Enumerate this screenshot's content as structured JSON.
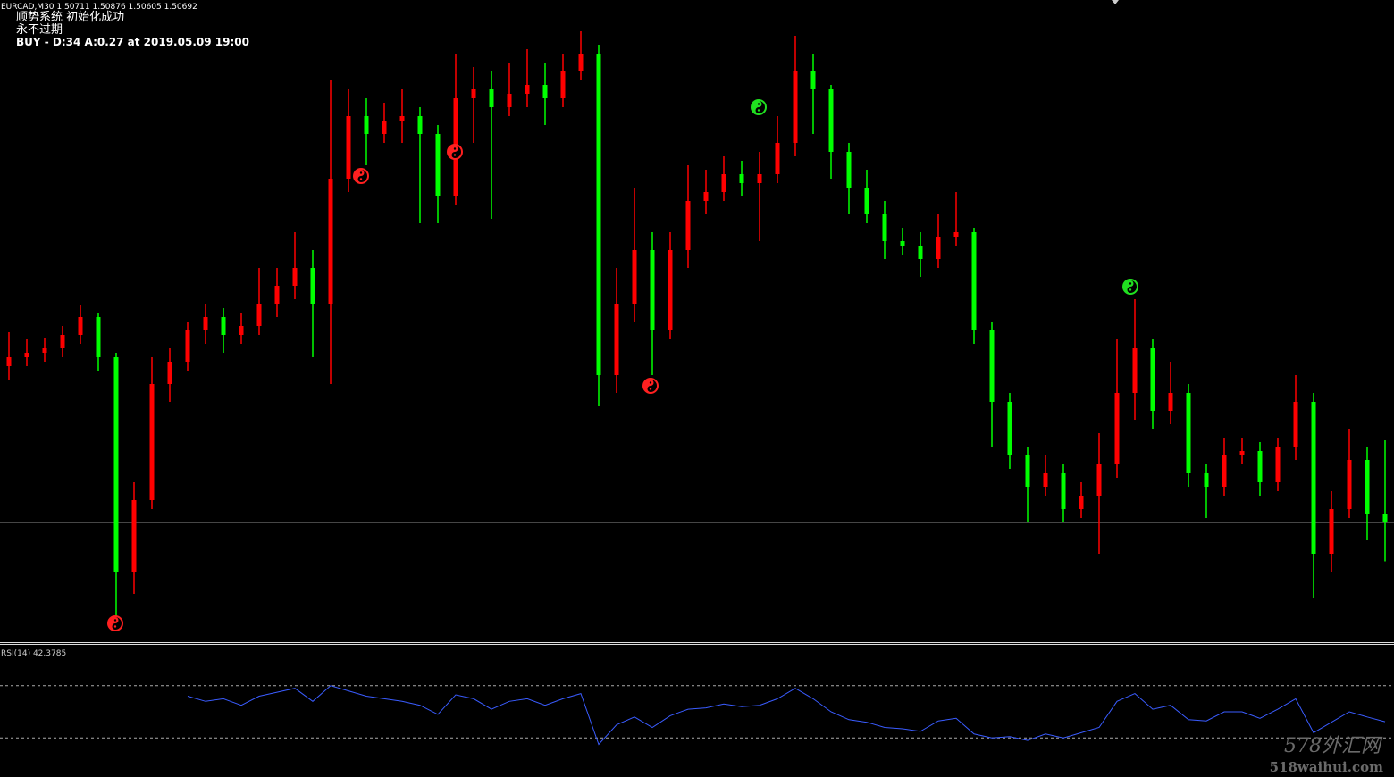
{
  "header": {
    "symbol_line": "EURCAD,M30  1.50711 1.50876 1.50605 1.50692",
    "status": "顺势系统 初始化成功",
    "expiry": "永不过期",
    "signal": "BUY - D:34 A:0.27 at 2019.05.09 19:00"
  },
  "chart_data": [
    {
      "type": "candlestick",
      "up_color": "#ff0000",
      "down_color": "#00ff00",
      "ylim": [
        1.50426,
        1.51862
      ],
      "bid_line": 1.50692,
      "bid_line_color": "#8c8c8c",
      "open": [
        1.51042,
        1.51062,
        1.51072,
        1.51082,
        1.51112,
        1.51152,
        1.51062,
        1.50582,
        1.50742,
        1.51002,
        1.51052,
        1.51122,
        1.51152,
        1.51112,
        1.51132,
        1.51182,
        1.51222,
        1.51262,
        1.51182,
        1.51462,
        1.51602,
        1.51562,
        1.51592,
        1.51602,
        1.51562,
        1.51422,
        1.51642,
        1.51662,
        1.51622,
        1.51652,
        1.51672,
        1.51642,
        1.51702,
        1.51742,
        1.51022,
        1.51182,
        1.51302,
        1.51122,
        1.51302,
        1.51412,
        1.51432,
        1.51472,
        1.51452,
        1.51472,
        1.51542,
        1.51702,
        1.51662,
        1.51522,
        1.51442,
        1.51382,
        1.51322,
        1.51312,
        1.51282,
        1.51332,
        1.51342,
        1.51122,
        1.50962,
        1.50842,
        1.50772,
        1.50802,
        1.50722,
        1.50752,
        1.50822,
        1.50982,
        1.51082,
        1.50942,
        1.50982,
        1.50802,
        1.50772,
        1.50842,
        1.50852,
        1.50782,
        1.50862,
        1.50962,
        1.50622,
        1.50722,
        1.50832,
        1.50711
      ],
      "high": [
        1.51118,
        1.51102,
        1.51106,
        1.51132,
        1.51178,
        1.51162,
        1.51072,
        1.50782,
        1.51062,
        1.51082,
        1.51142,
        1.51182,
        1.51172,
        1.51162,
        1.51262,
        1.51262,
        1.51342,
        1.51302,
        1.51682,
        1.51662,
        1.51642,
        1.51632,
        1.51662,
        1.51622,
        1.51582,
        1.51742,
        1.51712,
        1.51702,
        1.51722,
        1.51752,
        1.51722,
        1.51742,
        1.51792,
        1.51762,
        1.51262,
        1.51442,
        1.51342,
        1.51342,
        1.51492,
        1.51482,
        1.51512,
        1.51502,
        1.51522,
        1.51602,
        1.51782,
        1.51742,
        1.51672,
        1.51542,
        1.51482,
        1.51412,
        1.51352,
        1.51342,
        1.51382,
        1.51432,
        1.51352,
        1.51142,
        1.50982,
        1.50862,
        1.50842,
        1.50822,
        1.50782,
        1.50892,
        1.51102,
        1.51192,
        1.51102,
        1.51052,
        1.51002,
        1.50822,
        1.50882,
        1.50882,
        1.50872,
        1.50882,
        1.51022,
        1.50982,
        1.50762,
        1.50902,
        1.50862,
        1.50876
      ],
      "low": [
        1.51012,
        1.51042,
        1.51052,
        1.51062,
        1.51092,
        1.51032,
        1.50482,
        1.50532,
        1.50722,
        1.50962,
        1.51032,
        1.51092,
        1.51072,
        1.51092,
        1.51112,
        1.51152,
        1.51192,
        1.51062,
        1.51002,
        1.51432,
        1.51492,
        1.51542,
        1.51542,
        1.51362,
        1.51362,
        1.51402,
        1.51542,
        1.51372,
        1.51602,
        1.51622,
        1.51582,
        1.51622,
        1.51682,
        1.50952,
        1.50982,
        1.51142,
        1.51022,
        1.51102,
        1.51262,
        1.51382,
        1.51412,
        1.51422,
        1.51322,
        1.51452,
        1.51512,
        1.51562,
        1.51462,
        1.51382,
        1.51362,
        1.51282,
        1.51292,
        1.51242,
        1.51262,
        1.51312,
        1.51092,
        1.50862,
        1.50812,
        1.50692,
        1.50752,
        1.50692,
        1.50702,
        1.50622,
        1.50792,
        1.50922,
        1.50902,
        1.50912,
        1.50772,
        1.50702,
        1.50752,
        1.50822,
        1.50752,
        1.50762,
        1.50832,
        1.50522,
        1.50582,
        1.50702,
        1.50652,
        1.50605
      ],
      "close": [
        1.51062,
        1.51072,
        1.51082,
        1.51112,
        1.51152,
        1.51062,
        1.50582,
        1.50742,
        1.51002,
        1.51052,
        1.51122,
        1.51152,
        1.51112,
        1.51132,
        1.51182,
        1.51222,
        1.51262,
        1.51182,
        1.51462,
        1.51602,
        1.51562,
        1.51592,
        1.51602,
        1.51562,
        1.51422,
        1.51642,
        1.51662,
        1.51622,
        1.51652,
        1.51672,
        1.51642,
        1.51702,
        1.51742,
        1.51022,
        1.51182,
        1.51302,
        1.51122,
        1.51302,
        1.51412,
        1.51432,
        1.51472,
        1.51452,
        1.51472,
        1.51542,
        1.51702,
        1.51662,
        1.51522,
        1.51442,
        1.51382,
        1.51322,
        1.51312,
        1.51282,
        1.51332,
        1.51342,
        1.51122,
        1.50962,
        1.50842,
        1.50772,
        1.50802,
        1.50722,
        1.50752,
        1.50822,
        1.50982,
        1.51082,
        1.50942,
        1.50982,
        1.50802,
        1.50772,
        1.50842,
        1.50852,
        1.50782,
        1.50862,
        1.50962,
        1.50622,
        1.50722,
        1.50832,
        1.50711,
        1.50692
      ]
    },
    {
      "type": "line",
      "title": "RSI(14) 42.3785",
      "color": "#3a5cff",
      "ylim": [
        0,
        100
      ],
      "levels": [
        30,
        70
      ],
      "values": [
        null,
        null,
        null,
        null,
        null,
        null,
        null,
        null,
        null,
        null,
        62,
        58,
        60,
        55,
        62,
        65,
        68,
        58,
        70,
        66,
        62,
        60,
        58,
        55,
        48,
        63,
        60,
        52,
        58,
        60,
        55,
        60,
        64,
        25,
        40,
        46,
        38,
        47,
        52,
        53,
        56,
        54,
        55,
        60,
        68,
        60,
        50,
        44,
        42,
        38,
        37,
        35,
        43,
        45,
        33,
        30,
        31,
        28,
        33,
        30,
        34,
        38,
        58,
        64,
        52,
        55,
        44,
        43,
        50,
        50,
        45,
        52,
        60,
        34,
        42,
        50,
        46,
        42.3785
      ]
    }
  ],
  "watermark": {
    "brand": "578外汇网",
    "url": "518waihui.com"
  }
}
